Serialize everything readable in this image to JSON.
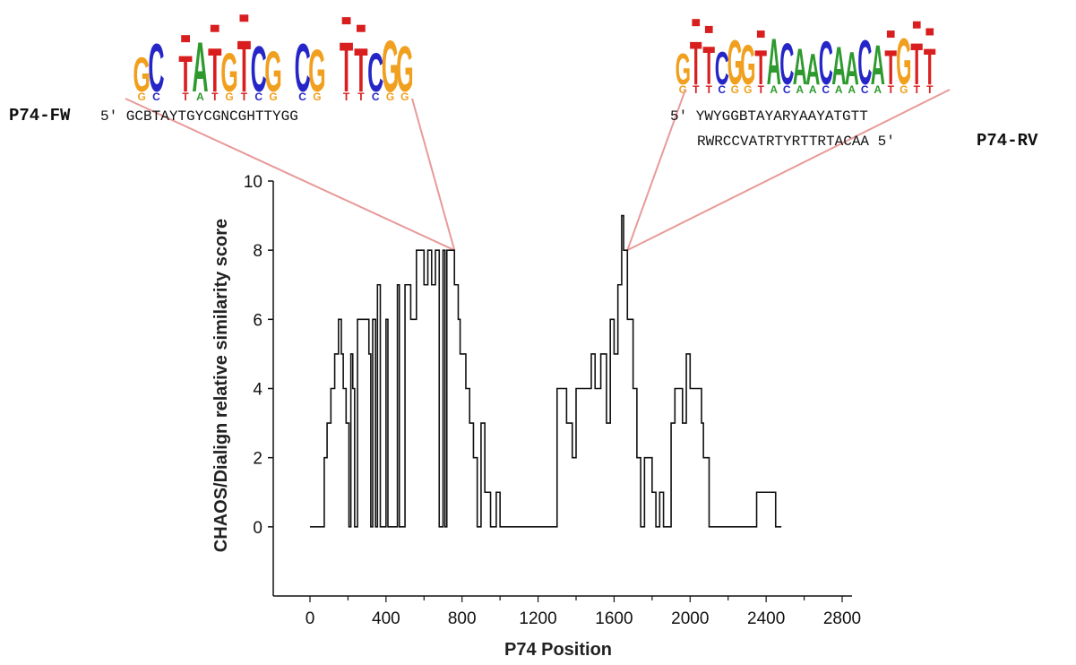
{
  "chart_data": {
    "type": "line",
    "title": "",
    "xlabel": "P74 Position",
    "ylabel": "CHAOS/Dialign relative similarity score",
    "xlim": [
      0,
      2800
    ],
    "ylim": [
      -2,
      10
    ],
    "xticks": [
      0,
      400,
      800,
      1200,
      1600,
      2000,
      2400,
      2800
    ],
    "yticks": [
      0,
      2,
      4,
      6,
      8,
      10
    ],
    "grid": false,
    "legend": "none",
    "line_color": "#111111",
    "series": [
      {
        "x": [
          0,
          75,
          90,
          110,
          130,
          150,
          165,
          175,
          190,
          205,
          215,
          225,
          235,
          250,
          280,
          310,
          320,
          330,
          345,
          355,
          370,
          400,
          410,
          460,
          470,
          500,
          530,
          560,
          600,
          620,
          640,
          660,
          680,
          700,
          710,
          720,
          760,
          780,
          790,
          820,
          840,
          860,
          880,
          900,
          920,
          950,
          980,
          1000,
          1030,
          1040,
          1060,
          1300,
          1310,
          1350,
          1380,
          1400,
          1440,
          1480,
          1500,
          1530,
          1560,
          1580,
          1600,
          1620,
          1640,
          1650,
          1660,
          1670,
          1700,
          1720,
          1740,
          1760,
          1800,
          1820,
          1840,
          1860,
          1880,
          1900,
          1920,
          1950,
          1960,
          1980,
          2000,
          2050,
          2060,
          2070,
          2100,
          2340,
          2350,
          2440,
          2450,
          2480
        ],
        "y": [
          0,
          2,
          3,
          4,
          5,
          6,
          5,
          4,
          3,
          0,
          5,
          4,
          0,
          6,
          6,
          5,
          0,
          6,
          0,
          7,
          0,
          6,
          0,
          7,
          0,
          7,
          6,
          8,
          7,
          8,
          7,
          8,
          0,
          8,
          0,
          8,
          7,
          6,
          5,
          4,
          3,
          2,
          0,
          3,
          1,
          0,
          1,
          0,
          0,
          0,
          0,
          4,
          4,
          3,
          2,
          4,
          4,
          5,
          4,
          5,
          3,
          6,
          5,
          7,
          9,
          8,
          8,
          6,
          4,
          2,
          0,
          2,
          1,
          0,
          1,
          0,
          0,
          3,
          4,
          4,
          3,
          5,
          4,
          4,
          3,
          2,
          0,
          0,
          1,
          1,
          0,
          0
        ]
      }
    ],
    "logos": [
      {
        "text": "GC_TATGTCG_CG_TTCGG",
        "primer_label": "P74-FW",
        "primer_seq": "5′ GCBTAYTGYCGNCGHTTYGG",
        "anchor": [
          760,
          8
        ]
      },
      {
        "text": "GTTCGGTACAACAACATGTT",
        "primer_label": "P74-RV",
        "primer_seq_top": "5′ YWYGGBTAYARYAAYATGTT",
        "primer_seq_bottom": "RWRCCVATRTYRTTRTACAA 5′",
        "anchor": [
          1670,
          8
        ]
      }
    ]
  },
  "colors": {
    "A": "#2e9a2e",
    "C": "#2626c8",
    "G": "#f0a01e",
    "T": "#d81e1e",
    "callout_line": "#e89a9a",
    "top_block": "#d81e1e"
  }
}
